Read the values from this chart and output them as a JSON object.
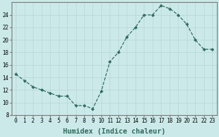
{
  "x": [
    0,
    1,
    2,
    3,
    4,
    5,
    6,
    7,
    8,
    9,
    10,
    11,
    12,
    13,
    14,
    15,
    16,
    17,
    18,
    19,
    20,
    21,
    22,
    23
  ],
  "y": [
    14.5,
    13.5,
    12.5,
    12.0,
    11.5,
    11.0,
    11.0,
    9.5,
    9.5,
    9.0,
    11.8,
    16.5,
    18.0,
    20.5,
    22.0,
    24.0,
    24.0,
    25.5,
    25.0,
    24.0,
    22.5,
    20.0,
    18.5,
    18.5
  ],
  "line_color": "#2e6b5e",
  "marker": "D",
  "marker_size": 2.2,
  "bg_color": "#cce9e9",
  "grid_color": "#b8d8d8",
  "xlabel": "Humidex (Indice chaleur)",
  "xlim": [
    -0.5,
    23.5
  ],
  "ylim": [
    8,
    26
  ],
  "yticks": [
    8,
    10,
    12,
    14,
    16,
    18,
    20,
    22,
    24
  ],
  "xticks": [
    0,
    1,
    2,
    3,
    4,
    5,
    6,
    7,
    8,
    9,
    10,
    11,
    12,
    13,
    14,
    15,
    16,
    17,
    18,
    19,
    20,
    21,
    22,
    23
  ],
  "xlabel_fontsize": 7.5,
  "tick_fontsize": 5.5
}
